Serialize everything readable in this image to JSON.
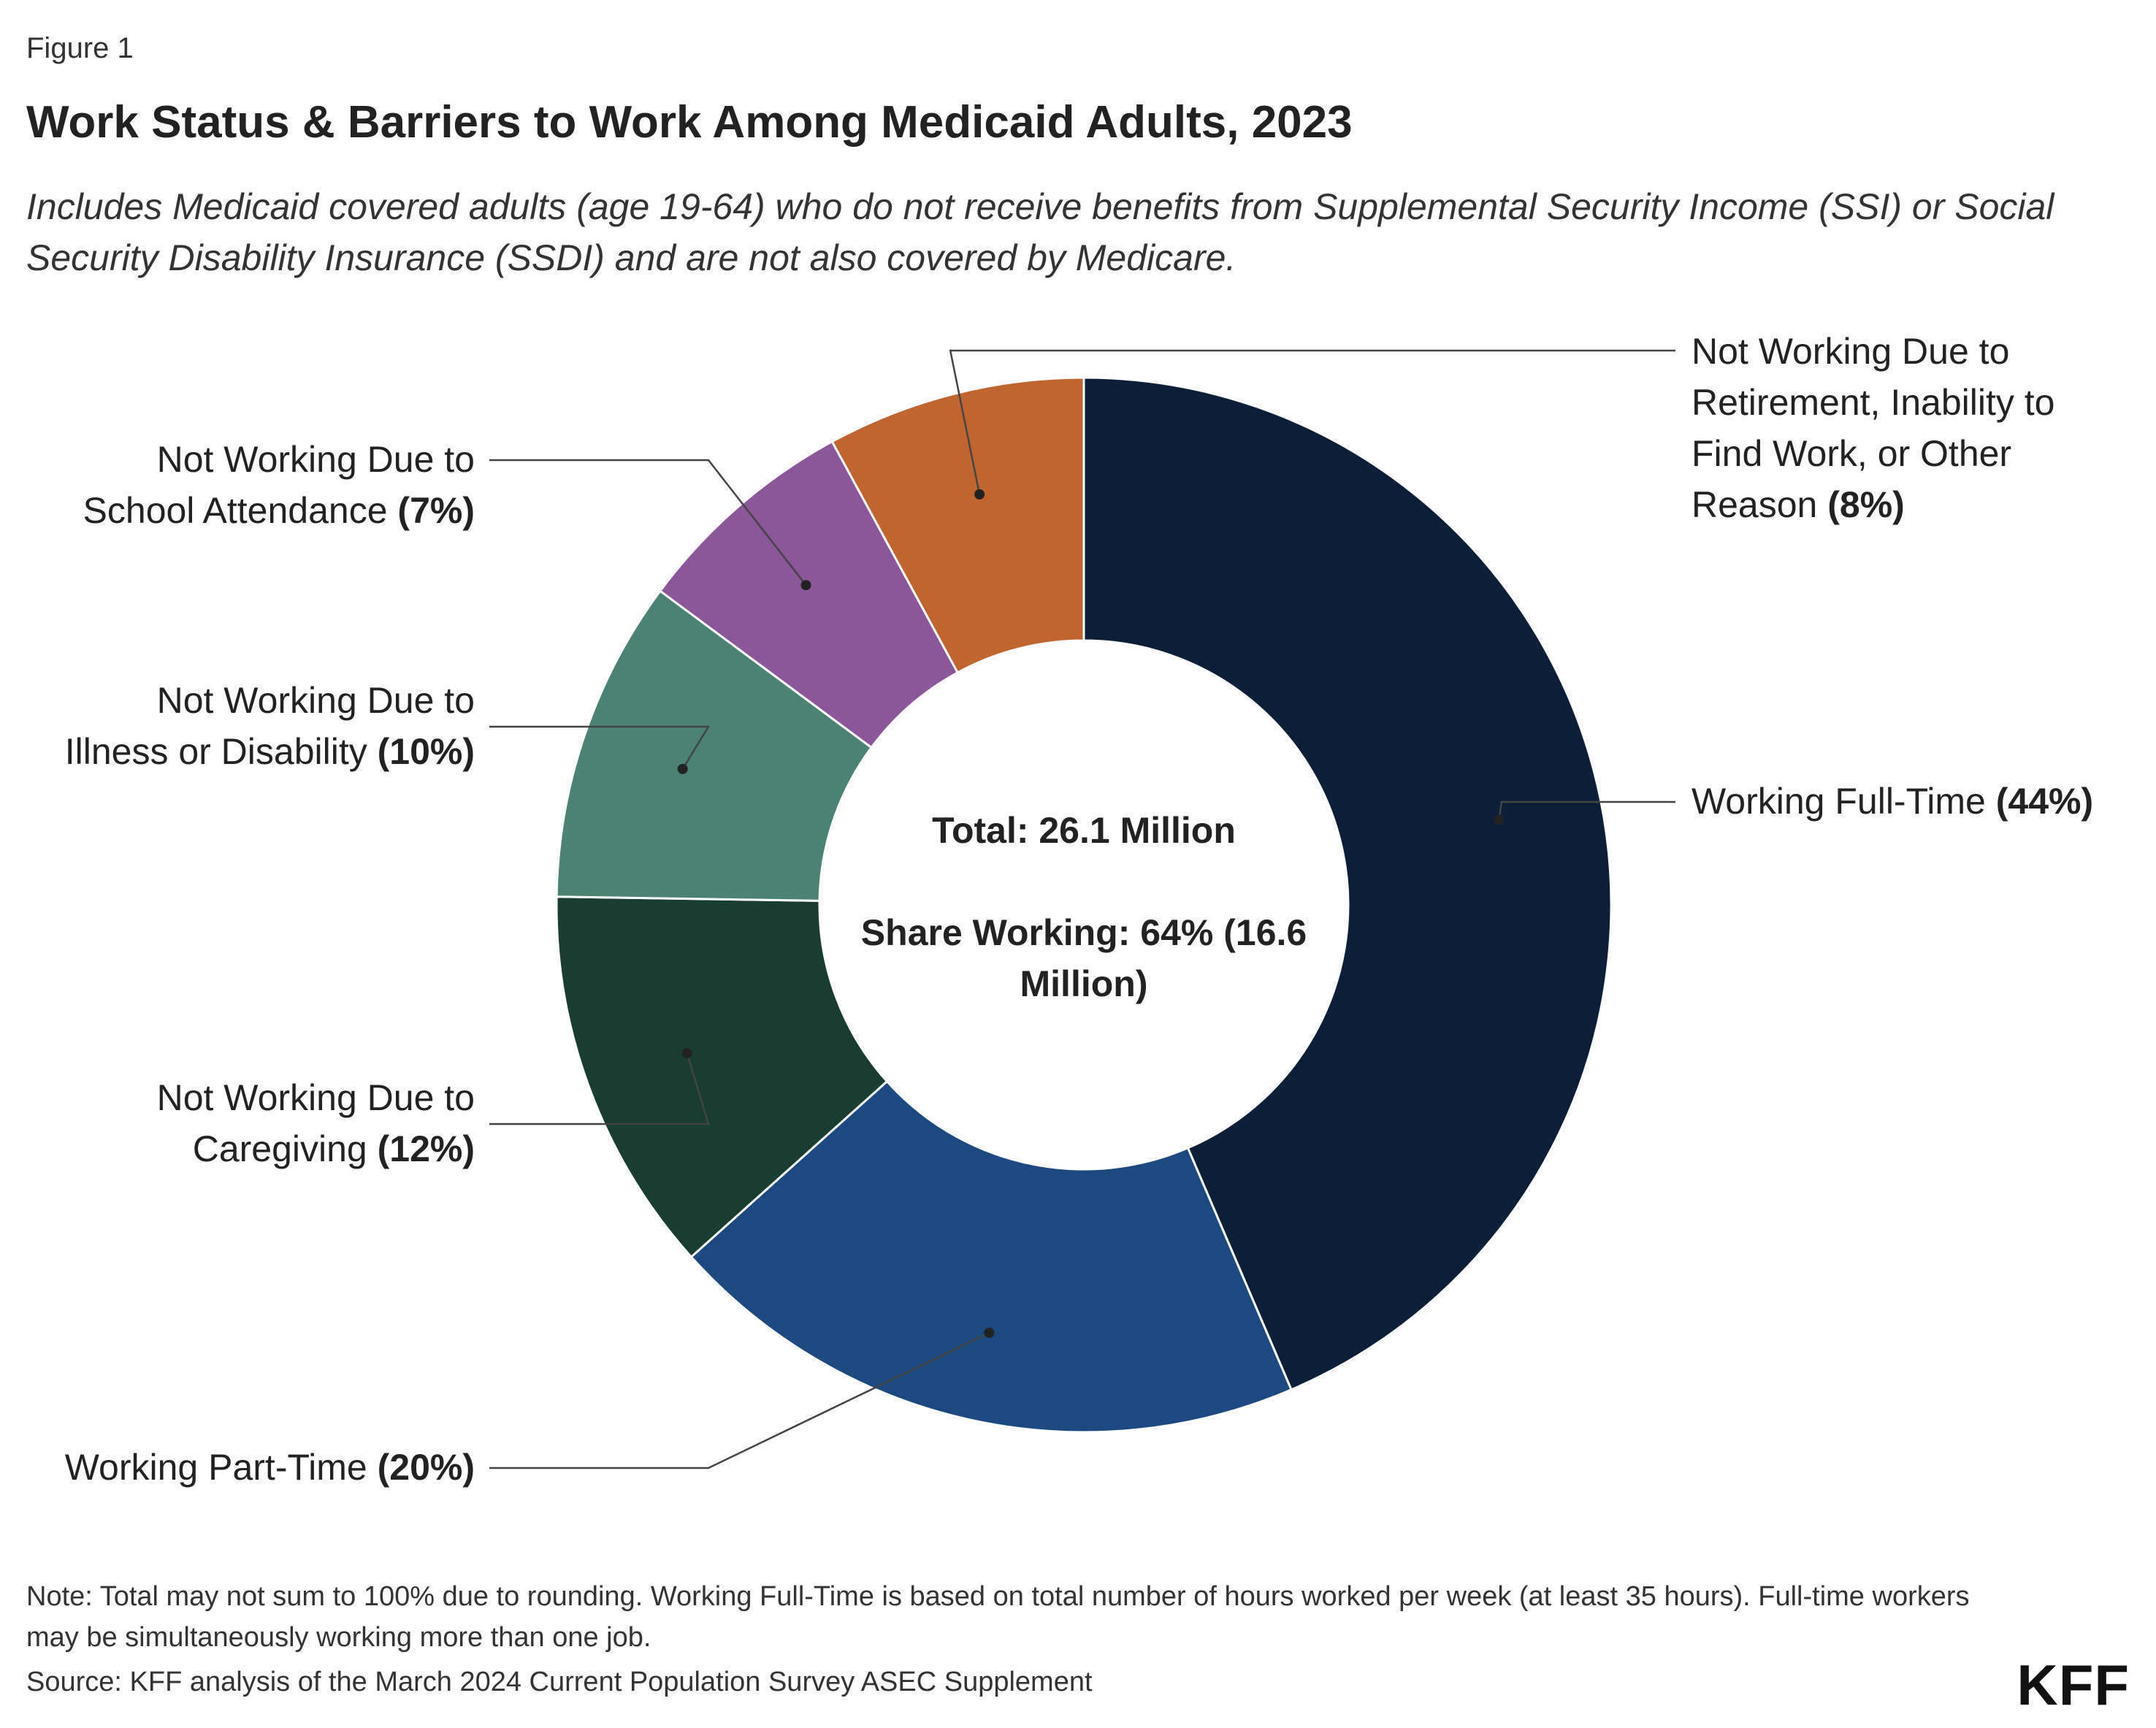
{
  "figure_label": "Figure 1",
  "title": "Work Status & Barriers to Work Among Medicaid Adults, 2023",
  "subtitle": "Includes Medicaid covered adults (age 19-64) who do not receive benefits from Supplemental Security Income (SSI) or Social Security Disability Insurance (SSDI) and are not also covered by Medicare.",
  "note": "Note: Total may not sum to 100% due to rounding. Working Full-Time is based on total number of hours worked per week (at least 35 hours). Full-time workers may be simultaneously working more than one job.",
  "source": "Source: KFF analysis of the March 2024 Current Population Survey ASEC Supplement",
  "logo": "KFF",
  "chart_data": {
    "type": "pie",
    "donut": true,
    "center_text": {
      "total": "Total: 26.1 Million",
      "share_working_line1": "Share Working: 64% (16.6",
      "share_working_line2": "Million)"
    },
    "slices": [
      {
        "name": "Working Full-Time",
        "value": 44,
        "value_label": "(44%)",
        "color": "#0b1f38",
        "label_lines": [
          "Working Full-Time"
        ]
      },
      {
        "name": "Working Part-Time",
        "value": 20,
        "value_label": "(20%)",
        "color": "#1c4a80",
        "label_lines": [
          "Working Part-Time"
        ]
      },
      {
        "name": "Not Working Due to Caregiving",
        "value": 12,
        "value_label": "(12%)",
        "color": "#193d31",
        "label_lines": [
          "Not Working Due to",
          "Caregiving"
        ]
      },
      {
        "name": "Not Working Due to Illness or Disability",
        "value": 10,
        "value_label": "(10%)",
        "color": "#4b8274",
        "label_lines": [
          "Not Working Due to",
          "Illness or Disability"
        ]
      },
      {
        "name": "Not Working Due to School Attendance",
        "value": 7,
        "value_label": "(7%)",
        "color": "#8c579a",
        "label_lines": [
          "Not Working Due to",
          "School Attendance"
        ]
      },
      {
        "name": "Not Working Due to Retirement, Inability to Find Work, or Other Reason",
        "value": 8,
        "value_label": "(8%)",
        "color": "#c06530",
        "label_lines": [
          "Not Working Due to",
          "Retirement, Inability to",
          "Find Work, or Other",
          "Reason"
        ]
      }
    ]
  }
}
